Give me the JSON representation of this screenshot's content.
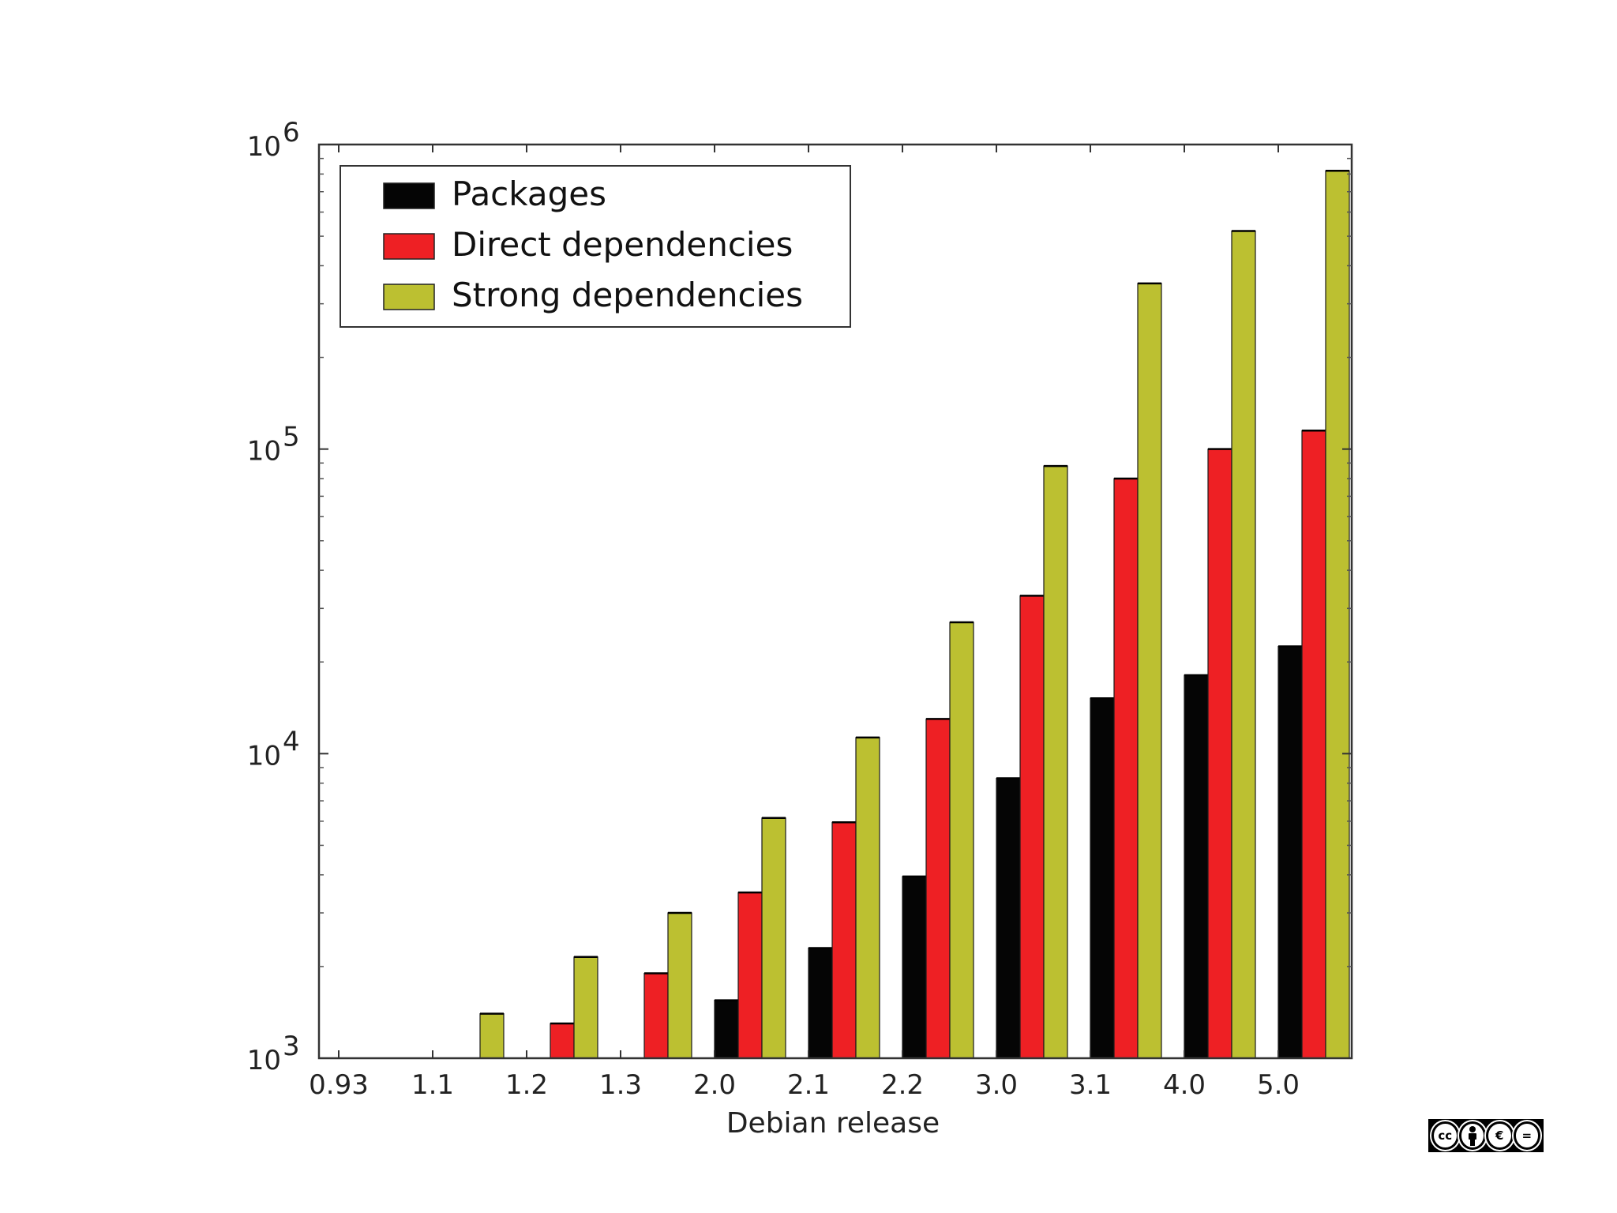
{
  "chart_data": {
    "type": "bar",
    "xlabel": "Debian release",
    "ylabel": "",
    "yscale": "log",
    "ylim": [
      1000,
      1000000
    ],
    "y_ticks": [
      {
        "base": "10",
        "exp": "3",
        "value": 1000
      },
      {
        "base": "10",
        "exp": "4",
        "value": 10000
      },
      {
        "base": "10",
        "exp": "5",
        "value": 100000
      },
      {
        "base": "10",
        "exp": "6",
        "value": 1000000
      }
    ],
    "categories": [
      "0.93",
      "1.1",
      "1.2",
      "1.3",
      "2.0",
      "2.1",
      "2.2",
      "3.0",
      "3.1",
      "4.0",
      "5.0"
    ],
    "series": [
      {
        "name": "Packages",
        "color": "#050505",
        "values": [
          null,
          null,
          null,
          null,
          1550,
          2300,
          3950,
          8300,
          15200,
          18100,
          22500
        ]
      },
      {
        "name": "Direct dependencies",
        "color": "#ee2024",
        "values": [
          null,
          null,
          1300,
          1900,
          3500,
          5950,
          13000,
          33000,
          80000,
          100000,
          115000
        ]
      },
      {
        "name": "Strong dependencies",
        "color": "#bcc031",
        "values": [
          null,
          1400,
          2150,
          3000,
          6150,
          11300,
          27000,
          88000,
          350000,
          520000,
          820000
        ]
      }
    ],
    "legend_position": "top-left",
    "grid": false
  },
  "license_badge": {
    "icons": [
      "cc-icon",
      "by-icon",
      "nc-icon",
      "nd-icon"
    ],
    "background": "#000000"
  }
}
